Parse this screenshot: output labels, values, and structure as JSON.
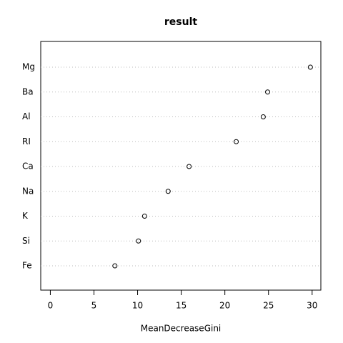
{
  "chart_data": {
    "type": "dot",
    "title": "result",
    "x_label": "MeanDecreaseGini",
    "categories": [
      "Mg",
      "Ba",
      "Al",
      "RI",
      "Ca",
      "Na",
      "K",
      "Si",
      "Fe"
    ],
    "values": [
      29.8,
      24.9,
      24.4,
      21.3,
      15.9,
      13.5,
      10.8,
      10.1,
      7.4
    ],
    "xlim": [
      -1.1,
      31
    ],
    "xticks": [
      0,
      5,
      10,
      15,
      20,
      25,
      30
    ],
    "grid": true,
    "color": "#000000"
  }
}
